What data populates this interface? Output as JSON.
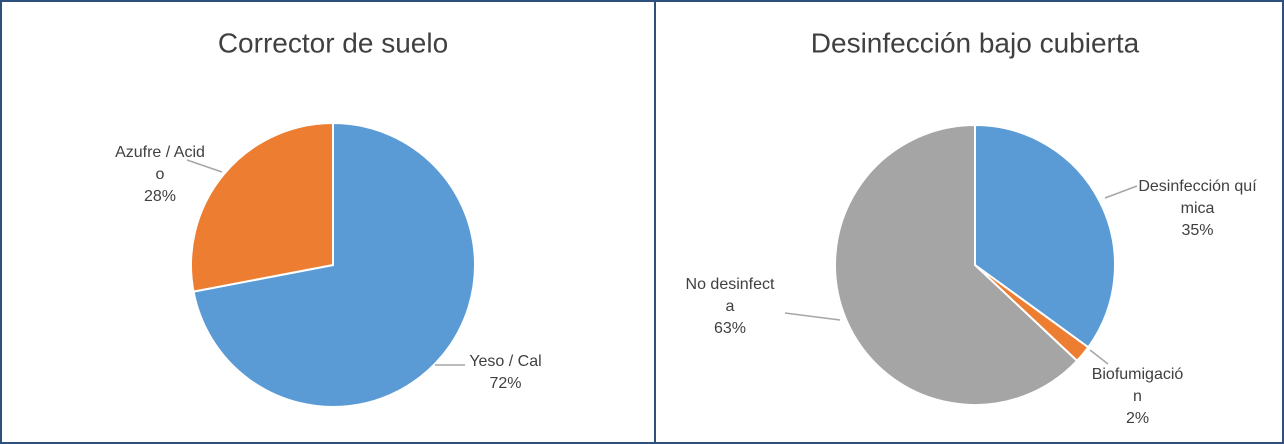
{
  "chart_data": [
    {
      "type": "pie",
      "title": "Corrector de suelo",
      "categories": [
        "Yeso / Cal",
        "Azufre / Acido"
      ],
      "values": [
        72,
        28
      ],
      "value_labels": [
        "72%",
        "28%"
      ],
      "colors": [
        "#5b9bd5",
        "#ed7d31"
      ]
    },
    {
      "type": "pie",
      "title": "Desinfección bajo cubierta",
      "categories": [
        "Desinfección química",
        "Biofumigación",
        "No desinfecta"
      ],
      "values": [
        35,
        2,
        63
      ],
      "value_labels": [
        "35%",
        "2%",
        "63%"
      ],
      "colors": [
        "#5b9bd5",
        "#ed7d31",
        "#a5a5a5"
      ]
    }
  ]
}
